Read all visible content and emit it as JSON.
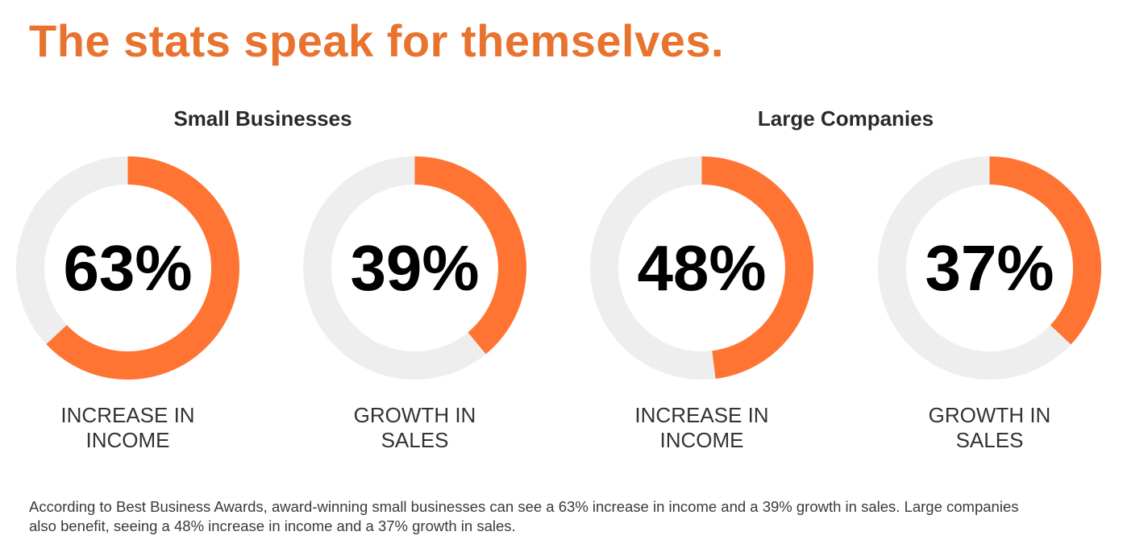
{
  "title": "The stats speak for themselves.",
  "groups": {
    "small": "Small Businesses",
    "large": "Large Companies"
  },
  "colors": {
    "title": "#e8732f",
    "arc": "#ff7433",
    "track": "#eeeeee"
  },
  "chart_data": {
    "type": "pie",
    "variant": "donut",
    "items": [
      {
        "group": "Small Businesses",
        "value": 63,
        "display": "63%",
        "label_line1": "INCREASE IN",
        "label_line2": "INCOME"
      },
      {
        "group": "Small Businesses",
        "value": 39,
        "display": "39%",
        "label_line1": "GROWTH IN",
        "label_line2": "SALES"
      },
      {
        "group": "Large Companies",
        "value": 48,
        "display": "48%",
        "label_line1": "INCREASE IN",
        "label_line2": "INCOME"
      },
      {
        "group": "Large Companies",
        "value": 37,
        "display": "37%",
        "label_line1": "GROWTH IN",
        "label_line2": "SALES"
      }
    ]
  },
  "footer": "According to Best Business Awards, award-winning small businesses can see a 63% increase in income and a 39% growth in sales. Large companies also benefit, seeing a 48% increase in income and a 37% growth in sales."
}
